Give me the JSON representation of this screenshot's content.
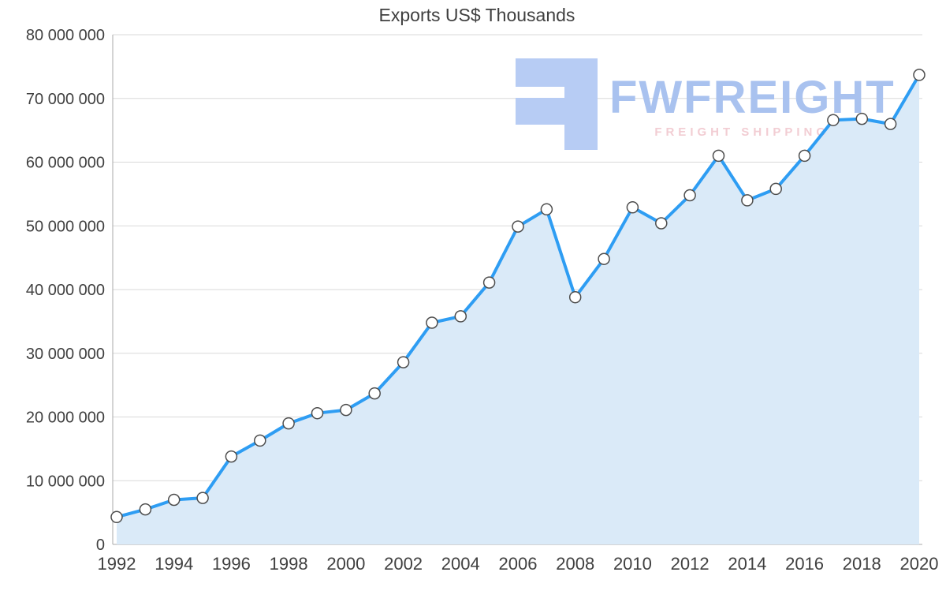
{
  "chart_data": {
    "type": "area",
    "title": "Exports US$ Thousands",
    "xlabel": "",
    "ylabel": "",
    "x": [
      1992,
      1993,
      1994,
      1995,
      1996,
      1997,
      1998,
      1999,
      2000,
      2001,
      2002,
      2003,
      2004,
      2005,
      2006,
      2007,
      2008,
      2009,
      2010,
      2011,
      2012,
      2013,
      2014,
      2015,
      2016,
      2017,
      2018,
      2019,
      2020
    ],
    "values": [
      4300000,
      5500000,
      7000000,
      7300000,
      13800000,
      16300000,
      19000000,
      20600000,
      21100000,
      23700000,
      28600000,
      34800000,
      35800000,
      41100000,
      49900000,
      52600000,
      38800000,
      44800000,
      52900000,
      50400000,
      54800000,
      61000000,
      54000000,
      55800000,
      61000000,
      66600000,
      66800000,
      66000000,
      73700000
    ],
    "x_tick_labels": [
      "1992",
      "1994",
      "1996",
      "1998",
      "2000",
      "2002",
      "2004",
      "2006",
      "2008",
      "2010",
      "2012",
      "2014",
      "2016",
      "2018",
      "2020"
    ],
    "y_ticks": [
      {
        "value": 0,
        "label": "0"
      },
      {
        "value": 10000000,
        "label": "10 000 000"
      },
      {
        "value": 20000000,
        "label": "20 000 000"
      },
      {
        "value": 30000000,
        "label": "30 000 000"
      },
      {
        "value": 40000000,
        "label": "40 000 000"
      },
      {
        "value": 50000000,
        "label": "50 000 000"
      },
      {
        "value": 60000000,
        "label": "60 000 000"
      },
      {
        "value": 70000000,
        "label": "70 000 000"
      },
      {
        "value": 80000000,
        "label": "80 000 000"
      }
    ],
    "xlim": [
      1992,
      2020
    ],
    "ylim": [
      0,
      80000000
    ],
    "grid": true,
    "legend": false,
    "colors": {
      "line": "#2e9df3",
      "area": "#daeaf8",
      "marker_fill": "#ffffff",
      "marker_stroke": "#4d4d4d",
      "grid": "#d9d9d9",
      "axis": "#a8a8a8",
      "text": "#404040"
    }
  },
  "watermark": {
    "brand": "FWFREIGHT",
    "tagline": "FREIGHT SHIPPING",
    "brand_color": "#a9c2ef",
    "icon_color": "#b7ccf4",
    "tagline_color": "#f2cdd3"
  }
}
